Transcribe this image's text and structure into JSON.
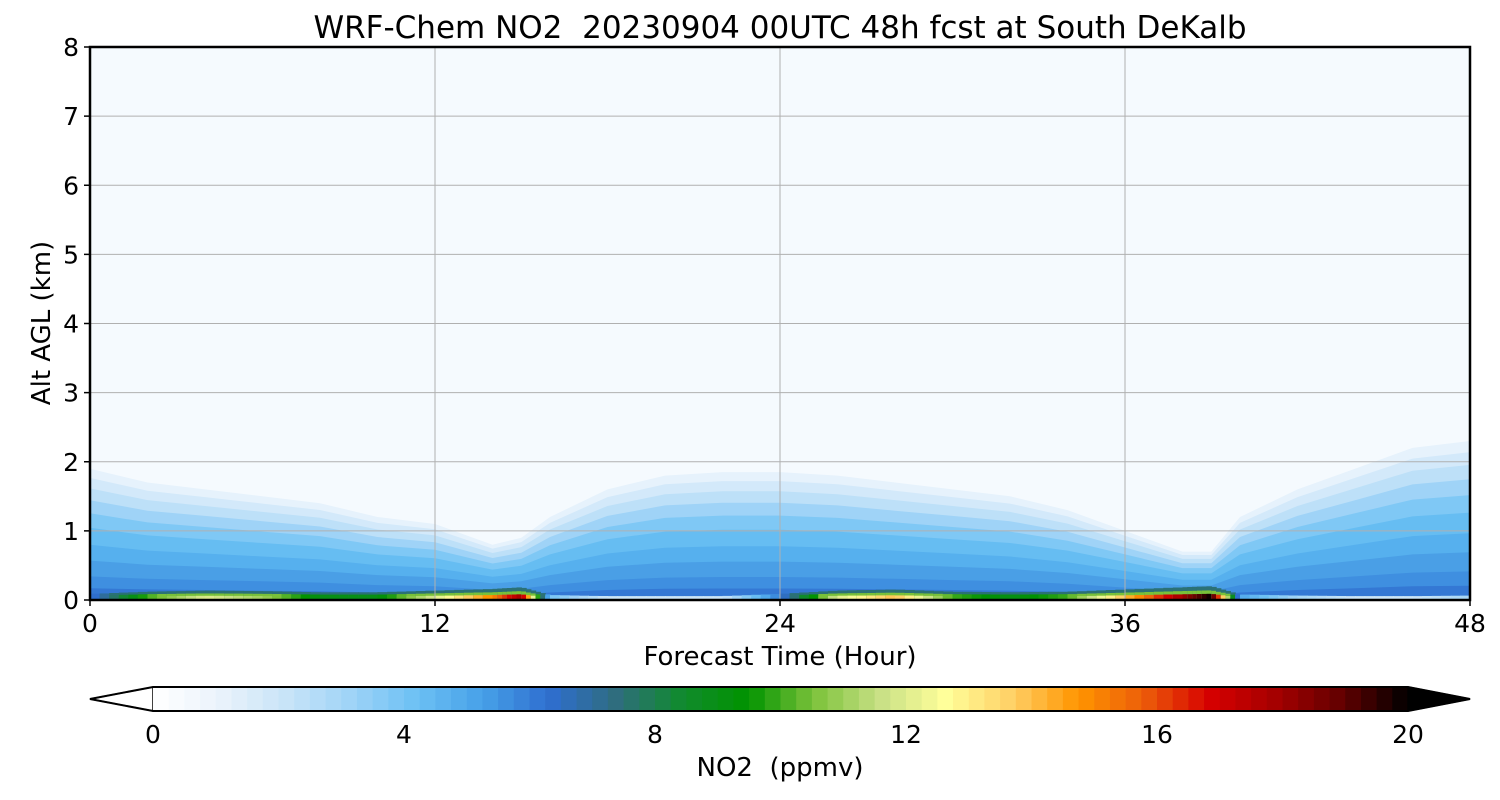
{
  "chart_data": {
    "type": "heatmap",
    "title": "WRF-Chem NO2  20230904 00UTC 48h fcst at South DeKalb",
    "xlabel": "Forecast Time (Hour)",
    "ylabel": "Alt AGL (km)",
    "xlim": [
      0,
      48
    ],
    "ylim": [
      0,
      8
    ],
    "x_ticks": [
      0,
      12,
      24,
      36,
      48
    ],
    "y_ticks": [
      0,
      1,
      2,
      3,
      4,
      5,
      6,
      7,
      8
    ],
    "grid": true,
    "colorbar": {
      "label": "NO2  (ppmv)",
      "orientation": "horizontal",
      "placement": "bottom",
      "range": [
        0,
        20
      ],
      "ticks": [
        0,
        4,
        8,
        12,
        16,
        20
      ],
      "extend": "both",
      "levels": 80,
      "colors": [
        "#ffffff",
        "#eaf3fb",
        "#c9e4f8",
        "#9fd3f7",
        "#6cc0f4",
        "#46a0e8",
        "#2f6ecf",
        "#2f6d7f",
        "#118a2e",
        "#009300",
        "#7cc23a",
        "#c8e085",
        "#ffff9a",
        "#ffd066",
        "#ff9500",
        "#ec5d0a",
        "#d60000",
        "#a40000",
        "#620000",
        "#000000"
      ],
      "under_color": "#ffffff",
      "over_color": "#000000"
    },
    "field": {
      "description_units": "ppmv",
      "x": [
        0,
        2,
        4,
        6,
        8,
        10,
        12,
        14,
        15,
        16,
        18,
        20,
        22,
        24,
        26,
        28,
        30,
        32,
        34,
        36,
        38,
        39,
        40,
        42,
        44,
        46,
        48
      ],
      "mixing_layer_top_km": [
        1.9,
        1.7,
        1.6,
        1.5,
        1.4,
        1.2,
        1.1,
        0.8,
        0.9,
        1.2,
        1.6,
        1.8,
        1.85,
        1.85,
        1.8,
        1.7,
        1.6,
        1.5,
        1.3,
        1.0,
        0.7,
        0.7,
        1.2,
        1.6,
        1.9,
        2.2,
        2.3
      ],
      "surface_max_ppmv": [
        6,
        10,
        12,
        11,
        9,
        9,
        12,
        15,
        18,
        4,
        2,
        2,
        2,
        6,
        12,
        14,
        10,
        9,
        10,
        14,
        18,
        20,
        5,
        3,
        2,
        2,
        3
      ]
    }
  }
}
